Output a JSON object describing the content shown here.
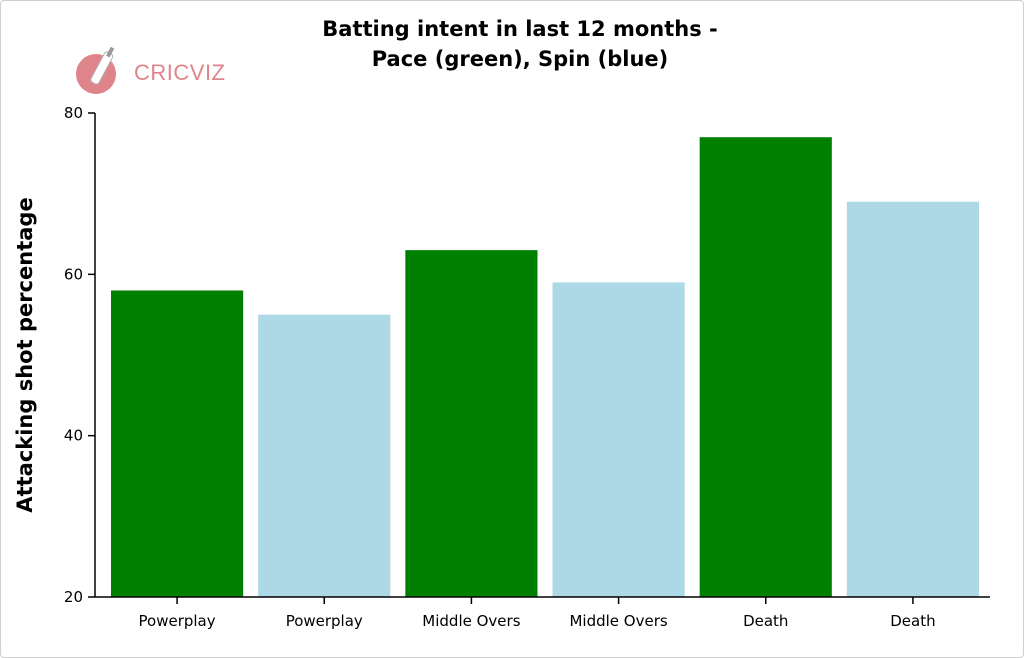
{
  "logo": {
    "text": "CRICVIZ",
    "color": "#e0848c"
  },
  "chart_data": {
    "type": "bar",
    "title_lines": [
      "Batting intent in last 12 months -",
      "Pace (green), Spin (blue)"
    ],
    "xlabel": "",
    "ylabel": "Attacking shot percentage",
    "ylim": [
      20,
      80
    ],
    "yticks": [
      20,
      40,
      60,
      80
    ],
    "grid": false,
    "categories": [
      "Powerplay",
      "Powerplay",
      "Middle Overs",
      "Middle Overs",
      "Death",
      "Death"
    ],
    "values": [
      58,
      55,
      63,
      59,
      77,
      69
    ],
    "colors": [
      "#008000",
      "#add8e6",
      "#008000",
      "#add8e6",
      "#008000",
      "#add8e6"
    ]
  }
}
